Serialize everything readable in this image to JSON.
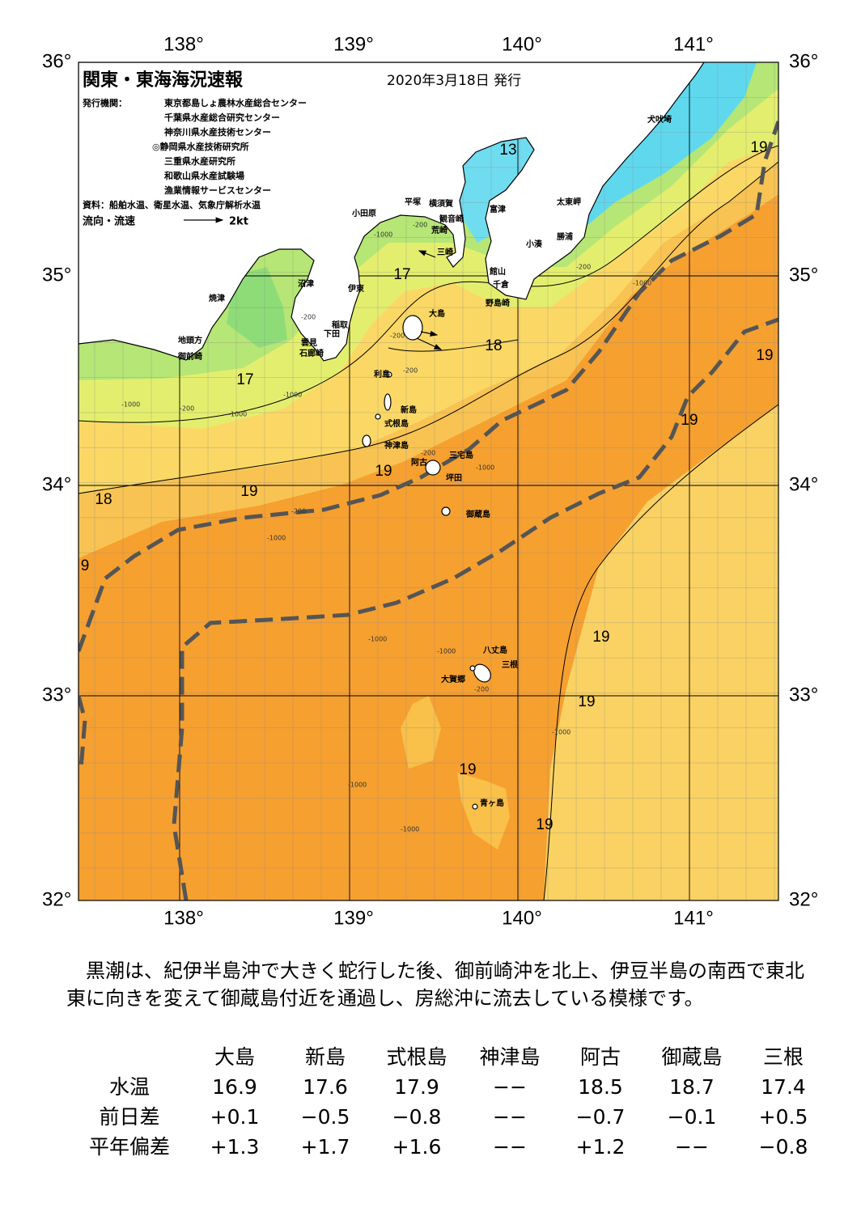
{
  "header": {
    "title": "関東・東海海況速報",
    "date": "2020年3月18日 発行"
  },
  "issuers": {
    "label": "発行機関：",
    "names": [
      "東京都島しょ農林水産総合センター",
      "千葉県水産総合研究センター",
      "神奈川県水産技術センター",
      "◎静岡県水産技術研究所",
      "三重県水産研究所",
      "和歌山県水産試験場",
      "漁業情報サービスセンター"
    ]
  },
  "sources": "資料：船舶水温、衛星水温、気象庁解析水温",
  "legend": {
    "label": "流向・流速",
    "speed": "2kt"
  },
  "map": {
    "lon_labels": [
      "138°",
      "139°",
      "140°",
      "141°"
    ],
    "lat_labels": [
      "36°",
      "35°",
      "34°",
      "33°",
      "32°"
    ],
    "place_names": [
      "犬吠埼",
      "太東岬",
      "勝浦",
      "小湊",
      "館山",
      "千倉",
      "野島崎",
      "富津",
      "横須賀",
      "観音崎",
      "荒崎",
      "三崎",
      "平塚",
      "小田原",
      "沼津",
      "伊東",
      "稲取",
      "下田",
      "雲見",
      "石廊崎",
      "焼津",
      "地頭方",
      "御前崎",
      "大島",
      "利島",
      "新島",
      "式根島",
      "神津島",
      "三宅島",
      "阿古",
      "坪田",
      "御蔵島",
      "八丈島",
      "三根",
      "大賀郷",
      "青ヶ島"
    ],
    "isotherm_labels": [
      13,
      19,
      17,
      18,
      19,
      17,
      19,
      19,
      19,
      18,
      9,
      19,
      19,
      19,
      19
    ],
    "depth_labels": [
      -1000,
      -200,
      -200,
      -1000,
      -200,
      -200,
      -1000,
      -200,
      -1000,
      -1000,
      -200,
      -1000,
      -200,
      -1000,
      -1000,
      -1000,
      -200,
      -1000,
      -1000,
      -1000,
      -200
    ]
  },
  "summary": "　黒潮は、紀伊半島沖で大きく蛇行した後、御前崎沖を北上、伊豆半島の南西で東北東に向きを変えて御蔵島付近を通過し、房総沖に流去している模様です。",
  "table": {
    "columns": [
      "大島",
      "新島",
      "式根島",
      "神津島",
      "阿古",
      "御蔵島",
      "三根"
    ],
    "rows": [
      {
        "label": "水温",
        "values": [
          "16.9",
          "17.6",
          "17.9",
          "−−",
          "18.5",
          "18.7",
          "17.4"
        ]
      },
      {
        "label": "前日差",
        "values": [
          "+0.1",
          "−0.5",
          "−0.8",
          "−−",
          "−0.7",
          "−0.1",
          "+0.5"
        ]
      },
      {
        "label": "平年偏差",
        "values": [
          "+1.3",
          "+1.7",
          "+1.6",
          "−−",
          "+1.2",
          "−−",
          "−0.8"
        ]
      }
    ]
  }
}
